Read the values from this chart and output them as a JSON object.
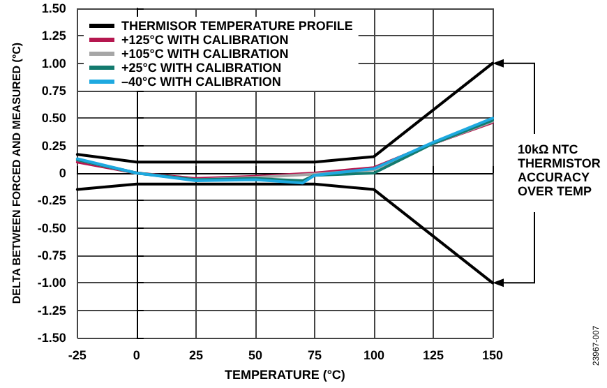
{
  "chart_data": {
    "type": "line",
    "xlabel": "TEMPERATURE (°C)",
    "ylabel": "DELTA BETWEEN FORCED AND MEASURED (°C)",
    "x": [
      -25,
      0,
      25,
      50,
      75,
      100,
      125,
      150
    ],
    "series": [
      {
        "name": "THERMISOR TEMPERATURE PROFILE",
        "color": "#000000",
        "x": [
          -25,
          0,
          25,
          50,
          75,
          100,
          150
        ],
        "values": [
          0.17,
          0.1,
          0.1,
          0.1,
          0.1,
          0.15,
          1.0
        ]
      },
      {
        "color": "#000000",
        "x": [
          -25,
          0,
          25,
          50,
          75,
          100,
          150
        ],
        "values": [
          -0.15,
          -0.1,
          -0.1,
          -0.1,
          -0.1,
          -0.15,
          -1.0
        ]
      },
      {
        "name": "+125°C WITH CALIBRATION",
        "color": "#b5174f",
        "values": [
          0.1,
          0,
          -0.05,
          -0.03,
          0.0,
          0.05,
          0.27,
          0.46
        ]
      },
      {
        "name": "+105°C WITH CALIBRATION",
        "color": "#a6a6a6",
        "values": [
          0.12,
          0,
          -0.06,
          -0.04,
          -0.01,
          0.03,
          0.27,
          0.47
        ]
      },
      {
        "name": "+25°C WITH CALIBRATION",
        "color": "#137a6e",
        "x": [
          -25,
          0,
          25,
          50,
          70,
          75,
          100,
          125,
          150
        ],
        "values": [
          0.12,
          0,
          -0.06,
          -0.05,
          -0.07,
          -0.02,
          0.0,
          0.27,
          0.48
        ]
      },
      {
        "name": "–40°C WITH CALIBRATION",
        "color": "#1ea9e0",
        "x": [
          -25,
          0,
          25,
          50,
          70,
          75,
          100,
          125,
          150
        ],
        "values": [
          0.13,
          0,
          -0.07,
          -0.06,
          -0.09,
          -0.02,
          0.04,
          0.28,
          0.5
        ]
      }
    ],
    "xlim": [
      -25,
      150
    ],
    "xticks": [
      -25,
      0,
      25,
      50,
      75,
      100,
      125,
      150
    ],
    "ylim": [
      -1.5,
      1.5
    ],
    "yticks": [
      {
        "value": -1.5,
        "label": "-1.50"
      },
      {
        "value": -1.25,
        "label": "-1.25"
      },
      {
        "value": -1,
        "label": "-1.00"
      },
      {
        "value": -0.75,
        "label": "-0.75"
      },
      {
        "value": -0.5,
        "label": "-0.50"
      },
      {
        "value": -0.25,
        "label": "-0.25"
      },
      {
        "value": 0,
        "label": "0"
      },
      {
        "value": 0.25,
        "label": "0.25"
      },
      {
        "value": 0.5,
        "label": "0.50"
      },
      {
        "value": 0.75,
        "label": "0.75"
      },
      {
        "value": 1,
        "label": "1.00"
      },
      {
        "value": 1.25,
        "label": "1.25"
      },
      {
        "value": 1.5,
        "label": "1.50"
      }
    ],
    "grid": true,
    "legend": "top left",
    "marker": "none",
    "line_style": "solid",
    "annotations": [
      "10kΩ NTC THERMISTOR ACCURACY OVER TEMP",
      "23967-007"
    ]
  }
}
